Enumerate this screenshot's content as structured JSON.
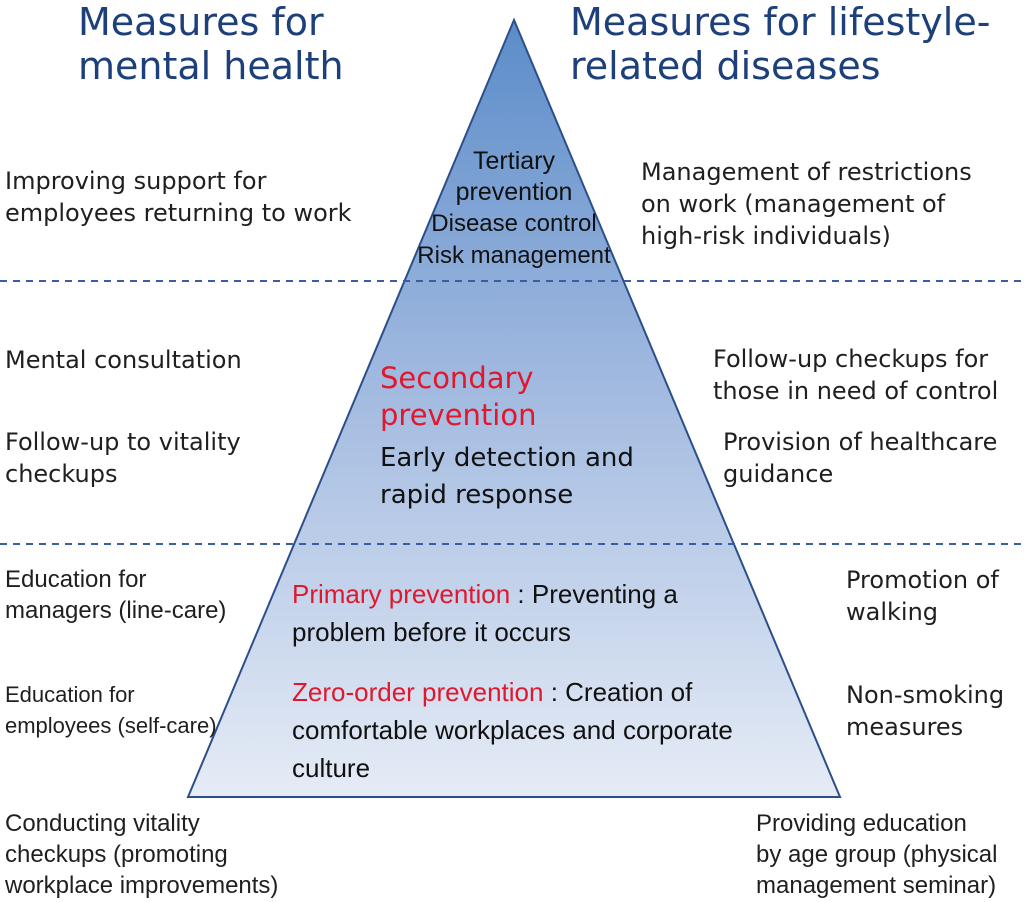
{
  "headings": {
    "left": "Measures for\nmental health",
    "right": "Measures for lifestyle-\nrelated diseases"
  },
  "tiers": {
    "tertiary": {
      "title": "Tertiary\nprevention",
      "line1": "Disease control",
      "line2": "Risk management"
    },
    "secondary": {
      "title": "Secondary\nprevention",
      "desc": "Early detection and\nrapid response"
    },
    "primary": {
      "title": "Primary prevention",
      "sep": " : ",
      "desc_first": "Preventing a",
      "desc_rest": "problem before it occurs"
    },
    "zero": {
      "title": "Zero-order prevention",
      "sep": " : ",
      "desc_first": "Creation of",
      "desc_rest": "comfortable workplaces and corporate\nculture"
    }
  },
  "left_items": {
    "returning_support": "Improving support for\nemployees returning to work",
    "mental_consultation": "Mental consultation",
    "vitality_followup": "Follow-up to vitality\ncheckups",
    "managers_education": "Education for\nmanagers (line-care)",
    "employees_education": "Education for\nemployees (self-care)",
    "vitality_checkups": "Conducting vitality\ncheckups (promoting\nworkplace improvements)"
  },
  "right_items": {
    "work_restrictions": "Management of restrictions\non work (management of\nhigh-risk individuals)",
    "followup_checkups": "Follow-up checkups for\nthose in need of control",
    "healthcare_guidance": "Provision of healthcare\nguidance",
    "walking": "Promotion of\nwalking",
    "non_smoking": "Non-smoking\nmeasures",
    "age_group_education": "Providing education\nby age group (physical\nmanagement seminar)"
  },
  "colors": {
    "heading": "#1d3f7a",
    "tier_title": "#e0182d",
    "pyramid_top": "#5b8cc9",
    "pyramid_bottom": "#e6ecf6",
    "pyramid_stroke": "#2c4f8a",
    "divider": "#3a5fa0"
  }
}
